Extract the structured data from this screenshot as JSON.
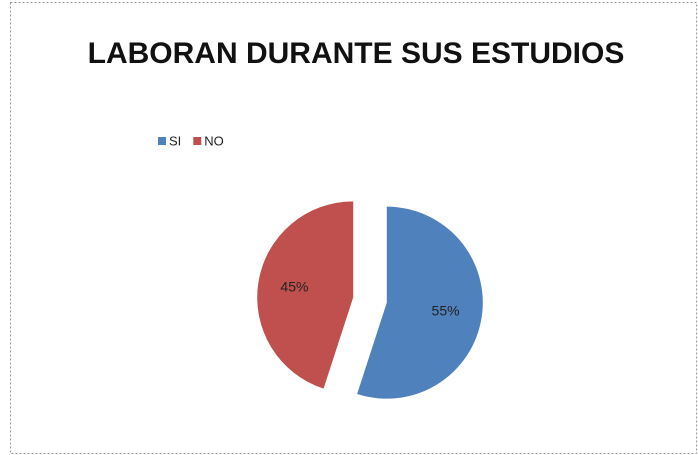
{
  "chart_data": {
    "type": "pie",
    "title": "LABORAN DURANTE SUS ESTUDIOS",
    "categories": [
      "SI",
      "NO"
    ],
    "values": [
      55,
      45
    ],
    "value_labels": [
      "55%",
      "45%"
    ],
    "colors": [
      "#4f81bd",
      "#c0504d"
    ],
    "legend": "top-left"
  }
}
